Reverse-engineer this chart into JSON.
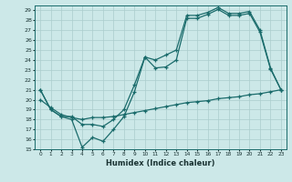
{
  "xlabel": "Humidex (Indice chaleur)",
  "bg_color": "#cce8e8",
  "grid_color": "#aacccc",
  "line_color": "#1a6b6b",
  "xlim": [
    -0.5,
    23.5
  ],
  "ylim": [
    15,
    29.5
  ],
  "xticks": [
    0,
    1,
    2,
    3,
    4,
    5,
    6,
    7,
    8,
    9,
    10,
    11,
    12,
    13,
    14,
    15,
    16,
    17,
    18,
    19,
    20,
    21,
    22,
    23
  ],
  "yticks": [
    15,
    16,
    17,
    18,
    19,
    20,
    21,
    22,
    23,
    24,
    25,
    26,
    27,
    28,
    29
  ],
  "line_zigzag_x": [
    0,
    1,
    2,
    3,
    4,
    5,
    6,
    7,
    8,
    9,
    10,
    11,
    12,
    13,
    14,
    15,
    16,
    17,
    18,
    19,
    20,
    21,
    22,
    23
  ],
  "line_zigzag_y": [
    21,
    19,
    18.3,
    18,
    15.2,
    16.2,
    15.8,
    17.0,
    18.3,
    20.8,
    24.3,
    23.2,
    23.3,
    24.0,
    28.2,
    28.2,
    28.6,
    29.1,
    28.5,
    28.5,
    28.7,
    26.8,
    23.1,
    21.0
  ],
  "line_smooth_x": [
    0,
    1,
    2,
    3,
    4,
    5,
    6,
    7,
    8,
    9,
    10,
    11,
    12,
    13,
    14,
    15,
    16,
    17,
    18,
    19,
    20,
    21,
    22,
    23
  ],
  "line_smooth_y": [
    21,
    19,
    18.3,
    18.3,
    17.5,
    17.5,
    17.3,
    18.0,
    19.0,
    21.5,
    24.3,
    24.0,
    24.5,
    25.0,
    28.5,
    28.5,
    28.8,
    29.3,
    28.7,
    28.7,
    28.9,
    27.0,
    23.2,
    21.0
  ],
  "line_flat_x": [
    0,
    1,
    2,
    3,
    4,
    5,
    6,
    7,
    8,
    9,
    10,
    11,
    12,
    13,
    14,
    15,
    16,
    17,
    18,
    19,
    20,
    21,
    22,
    23
  ],
  "line_flat_y": [
    20,
    19.2,
    18.5,
    18.2,
    18.0,
    18.2,
    18.2,
    18.3,
    18.5,
    18.7,
    18.9,
    19.1,
    19.3,
    19.5,
    19.7,
    19.8,
    19.9,
    20.1,
    20.2,
    20.3,
    20.5,
    20.6,
    20.8,
    21.0
  ]
}
